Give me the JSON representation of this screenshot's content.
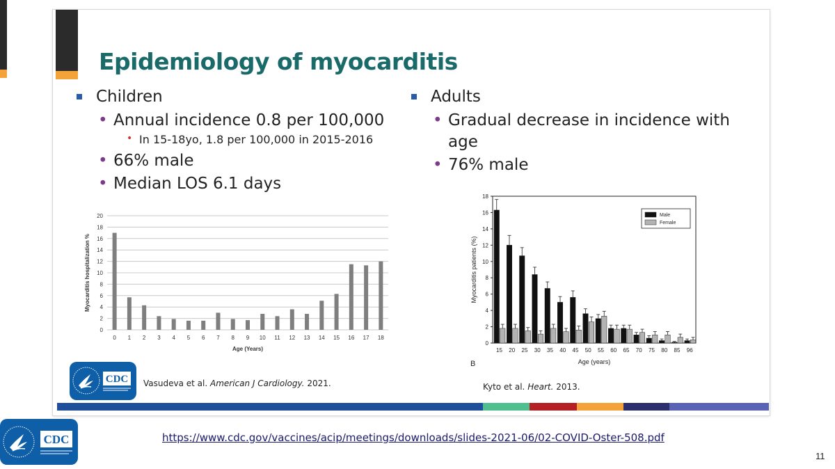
{
  "slide": {
    "title": "Epidemiology of myocarditis",
    "children": {
      "heading": "Children",
      "items": [
        {
          "text": "Annual incidence 0.8 per 100,000",
          "sub": [
            "In 15-18yo, 1.8 per 100,000 in 2015-2016"
          ]
        },
        {
          "text": "66% male"
        },
        {
          "text": "Median LOS 6.1 days"
        }
      ]
    },
    "adults": {
      "heading": "Adults",
      "items": [
        {
          "text": "Gradual decrease in incidence with age"
        },
        {
          "text": "76% male"
        }
      ]
    },
    "caption_left": {
      "authors": "Vasudeva et al. ",
      "journal": "American J Cardiology.",
      "year": " 2021."
    },
    "caption_right": {
      "authors": "Kyto et al. ",
      "journal": "Heart.",
      "year": " 2013."
    },
    "logo_text": "CDC",
    "footer_colors": [
      "#1f4f9b",
      "#4fbf8f",
      "#b52025",
      "#f4a23a",
      "#2b2f6e",
      "#5b63b7"
    ]
  },
  "link": "https://www.cdc.gov/vaccines/acip/meetings/downloads/slides-2021-06/02-COVID-Oster-508.pdf",
  "page_number": "11",
  "chart_data": [
    {
      "type": "bar",
      "categories": [
        "0",
        "1",
        "2",
        "3",
        "4",
        "5",
        "6",
        "7",
        "8",
        "9",
        "10",
        "11",
        "12",
        "13",
        "14",
        "15",
        "16",
        "17",
        "18"
      ],
      "values": [
        17.0,
        5.7,
        4.3,
        2.4,
        1.9,
        1.6,
        1.6,
        3.0,
        1.9,
        1.7,
        2.8,
        2.4,
        3.6,
        2.8,
        5.1,
        6.3,
        11.5,
        11.3,
        12.0
      ],
      "xlabel": "Age (Years)",
      "ylabel": "Myocarditis hospitalization %",
      "ylim": [
        0,
        20
      ],
      "yticks": [
        0,
        2,
        4,
        6,
        8,
        10,
        12,
        14,
        16,
        18,
        20
      ],
      "grid": true,
      "bar_color": "#7f7f7f"
    },
    {
      "type": "bar",
      "categories": [
        "15",
        "20",
        "25",
        "30",
        "35",
        "40",
        "45",
        "50",
        "55",
        "60",
        "65",
        "70",
        "75",
        "80",
        "85",
        "96"
      ],
      "series": [
        {
          "name": "Male",
          "values": [
            16.3,
            12.0,
            10.7,
            8.4,
            6.7,
            5.0,
            5.6,
            3.6,
            3.0,
            1.8,
            1.8,
            1.0,
            0.6,
            0.3,
            0.1,
            0.3
          ],
          "errors": [
            1.3,
            1.2,
            1.0,
            0.9,
            0.8,
            0.7,
            0.8,
            0.6,
            0.5,
            0.4,
            0.4,
            0.3,
            0.3,
            0.2,
            0.1,
            0.2
          ],
          "color": "#111111"
        },
        {
          "name": "Female",
          "values": [
            1.8,
            1.8,
            1.5,
            1.1,
            1.8,
            1.4,
            1.6,
            2.6,
            3.3,
            1.7,
            1.7,
            1.3,
            1.0,
            1.0,
            0.7,
            0.4
          ],
          "errors": [
            0.5,
            0.5,
            0.4,
            0.4,
            0.5,
            0.4,
            0.5,
            0.6,
            0.6,
            0.5,
            0.5,
            0.4,
            0.4,
            0.4,
            0.4,
            0.3
          ],
          "color": "#b3b3b3"
        }
      ],
      "xlabel": "Age (years)",
      "ylabel": "Myocarditis patients (%)",
      "ylim": [
        0,
        18
      ],
      "yticks": [
        0,
        2,
        4,
        6,
        8,
        10,
        12,
        14,
        16,
        18
      ],
      "panel_label": "B",
      "legend": "top-right",
      "grid": false
    }
  ]
}
